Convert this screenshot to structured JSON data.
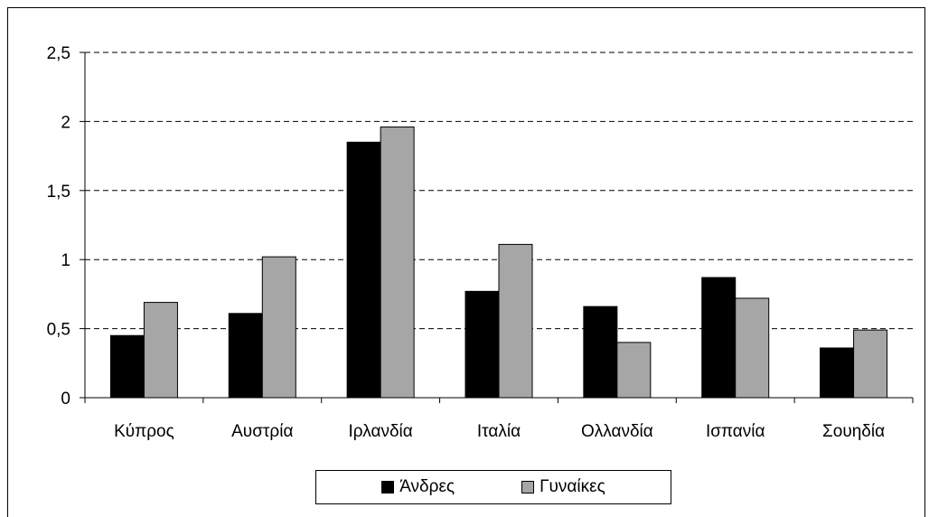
{
  "chart_data": {
    "type": "bar",
    "title": "",
    "xlabel": "",
    "ylabel": "",
    "categories": [
      "Κύπρος",
      "Αυστρία",
      "Ιρλανδία",
      "Ιταλία",
      "Ολλανδία",
      "Ισπανία",
      "Σουηδία"
    ],
    "series": [
      {
        "name": "Άνδρες",
        "color": "#000000",
        "values": [
          0.45,
          0.61,
          1.85,
          0.77,
          0.66,
          0.87,
          0.36
        ]
      },
      {
        "name": "Γυναίκες",
        "color": "#a6a6a6",
        "values": [
          0.69,
          1.02,
          1.96,
          1.11,
          0.4,
          0.72,
          0.49
        ]
      }
    ],
    "ylim": [
      0,
      2.5
    ],
    "yticks": [
      "0",
      "0,5",
      "1",
      "1,5",
      "2",
      "2,5"
    ],
    "ytick_values": [
      0,
      0.5,
      1,
      1.5,
      2,
      2.5
    ],
    "grid": "horizontal-dashed",
    "legend_position": "bottom"
  }
}
